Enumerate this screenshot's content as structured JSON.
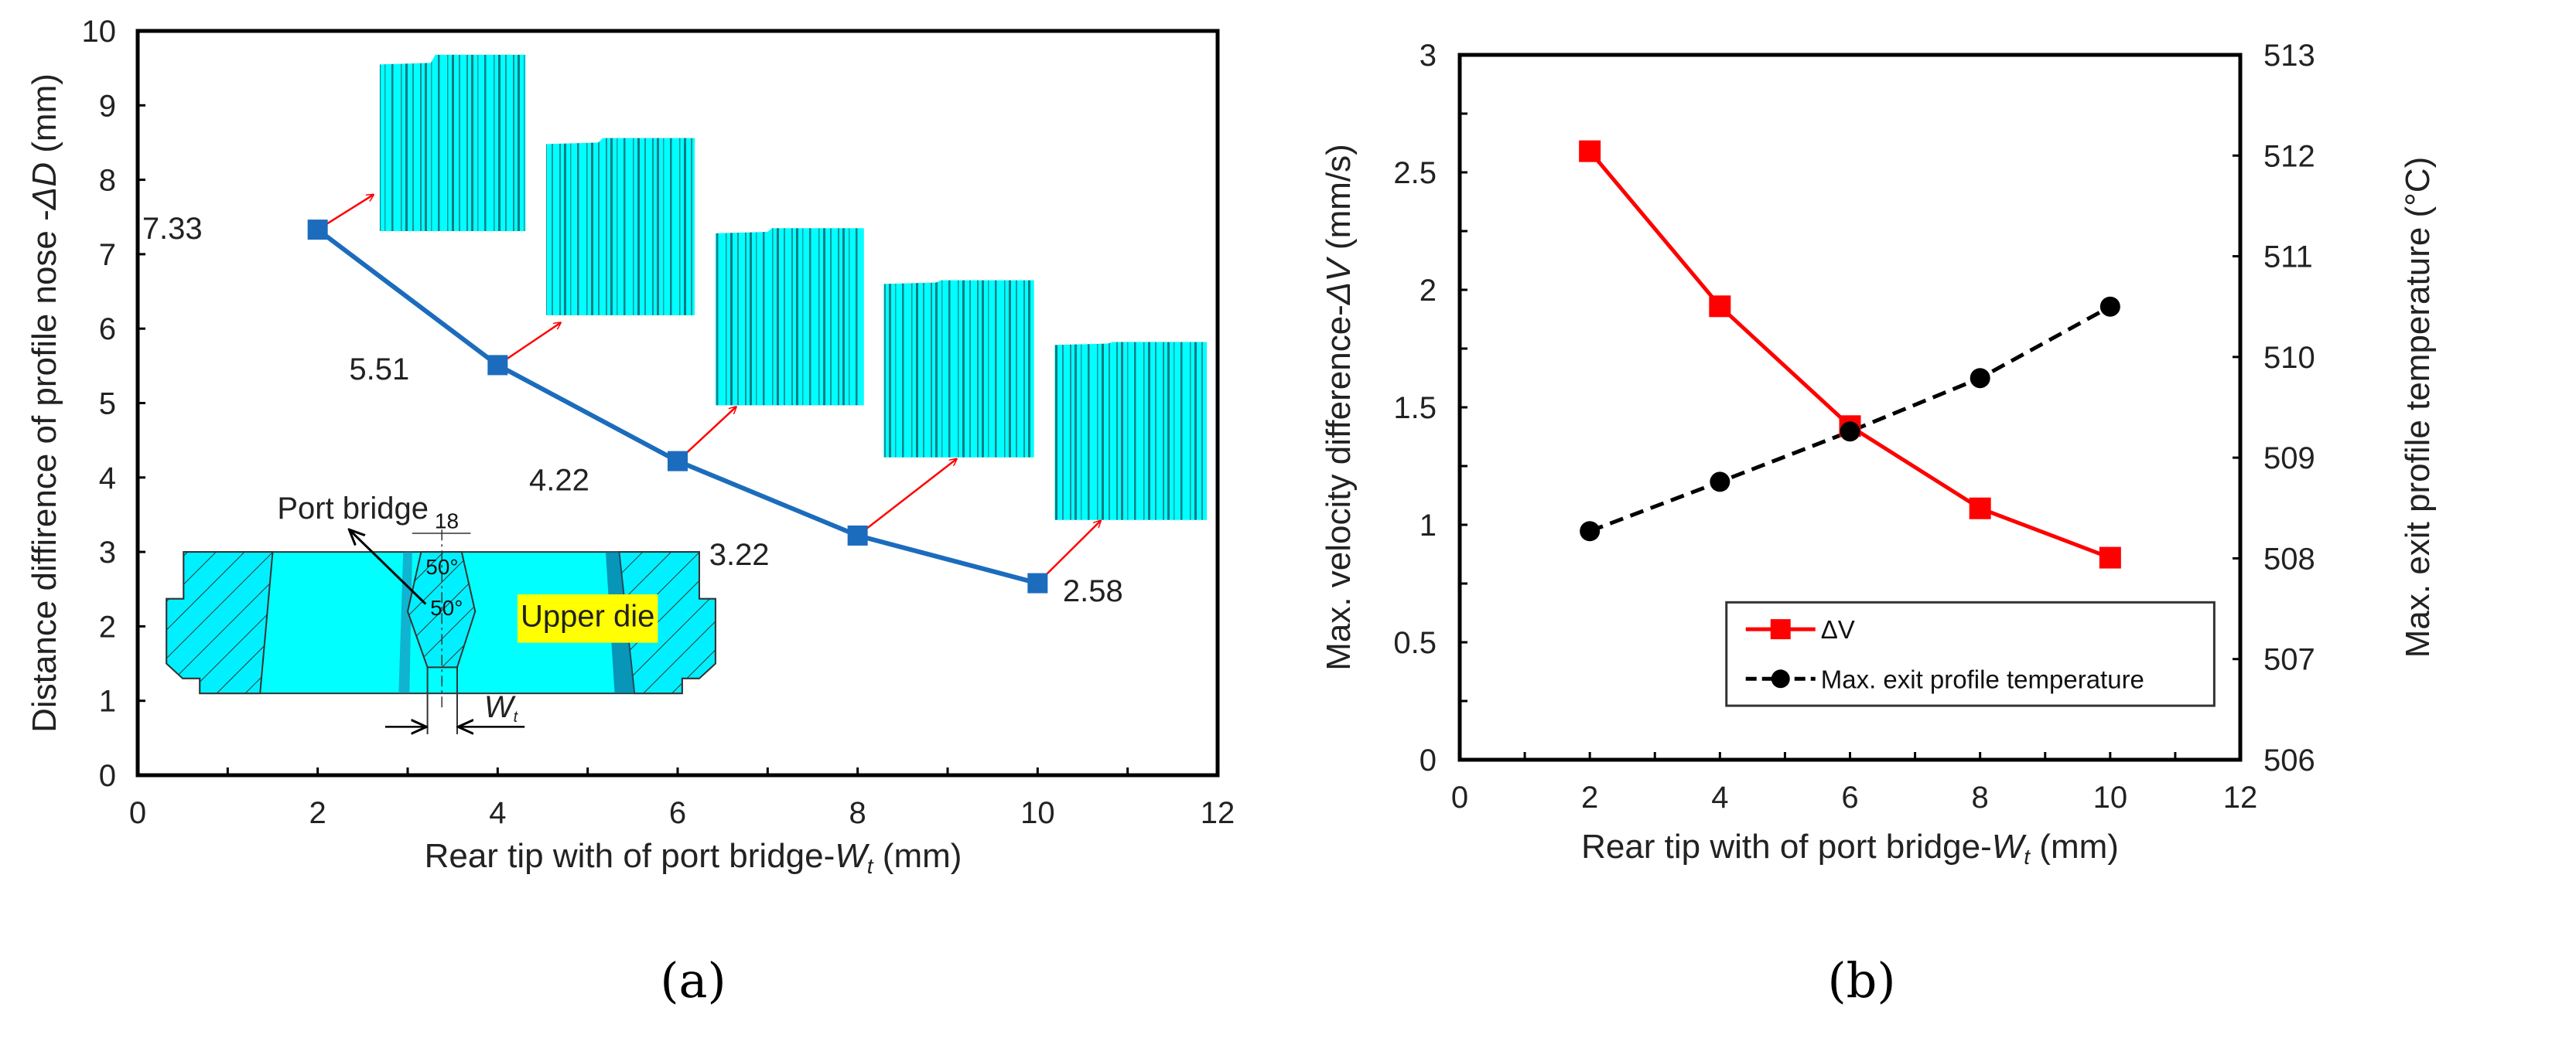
{
  "chart_data": [
    {
      "type": "line",
      "panel_label": "(a)",
      "title": "",
      "xlabel": "Rear tip with of port bridge-",
      "xlabel_var": "W",
      "xlabel_sub": "t",
      "xlabel_unit": " (mm)",
      "ylabel": "Distance diffirence of profile nose -",
      "ylabel_var": "ΔD",
      "ylabel_unit": " (mm)",
      "xlim": [
        0,
        12
      ],
      "ylim": [
        0,
        10
      ],
      "xticks": [
        "0",
        "2",
        "4",
        "6",
        "8",
        "10",
        "12"
      ],
      "yticks": [
        "0",
        "1",
        "2",
        "3",
        "4",
        "5",
        "6",
        "7",
        "8",
        "9",
        "10"
      ],
      "x": [
        2,
        4,
        6,
        8,
        10
      ],
      "series": [
        {
          "name": "ΔD",
          "values": [
            7.33,
            5.51,
            4.22,
            3.22,
            2.58
          ],
          "color": "#1c6cbd",
          "marker": "square"
        }
      ],
      "data_labels": [
        "7.33",
        "5.51",
        "4.22",
        "3.22",
        "2.58"
      ],
      "inset": {
        "port_bridge_label": "Port bridge",
        "dimension_label": "18",
        "angle_top": "50°",
        "angle_bottom": "50°",
        "die_label": "Upper die",
        "width_var": "W",
        "width_sub": "t"
      },
      "colors": {
        "profile": "#00ffff",
        "arrow": "#ff0000",
        "die_label_bg": "#ffff00"
      }
    },
    {
      "type": "line",
      "panel_label": "(b)",
      "title": "",
      "xlabel": "Rear tip with of port bridge-",
      "xlabel_var": "W",
      "xlabel_sub": "t",
      "xlabel_unit": " (mm)",
      "ylabel": "Max. velocity difference-",
      "ylabel_var": "ΔV",
      "ylabel_unit": " (mm/s)",
      "y2label": "Max. exit profile temperature (°C)",
      "xlim": [
        0,
        12
      ],
      "ylim": [
        0,
        3
      ],
      "y2lim": [
        506,
        513
      ],
      "xticks": [
        "0",
        "2",
        "4",
        "6",
        "8",
        "10",
        "12"
      ],
      "yticks": [
        "0",
        "0.5",
        "1",
        "1.5",
        "2",
        "2.5",
        "3"
      ],
      "y2ticks": [
        "506",
        "507",
        "508",
        "509",
        "510",
        "511",
        "512",
        "513"
      ],
      "x": [
        2,
        4,
        6,
        8,
        10
      ],
      "series": [
        {
          "name": "ΔV",
          "axis": "left",
          "values": [
            2.59,
            1.93,
            1.42,
            1.07,
            0.86
          ],
          "color": "#ff0000",
          "marker": "square",
          "style": "solid"
        },
        {
          "name": "Max. exit profile temperature",
          "axis": "right",
          "values": [
            508.27,
            508.76,
            509.26,
            509.79,
            510.5
          ],
          "color": "#000000",
          "marker": "circle",
          "style": "dashed"
        }
      ],
      "legend_position": "bottom-right"
    }
  ]
}
